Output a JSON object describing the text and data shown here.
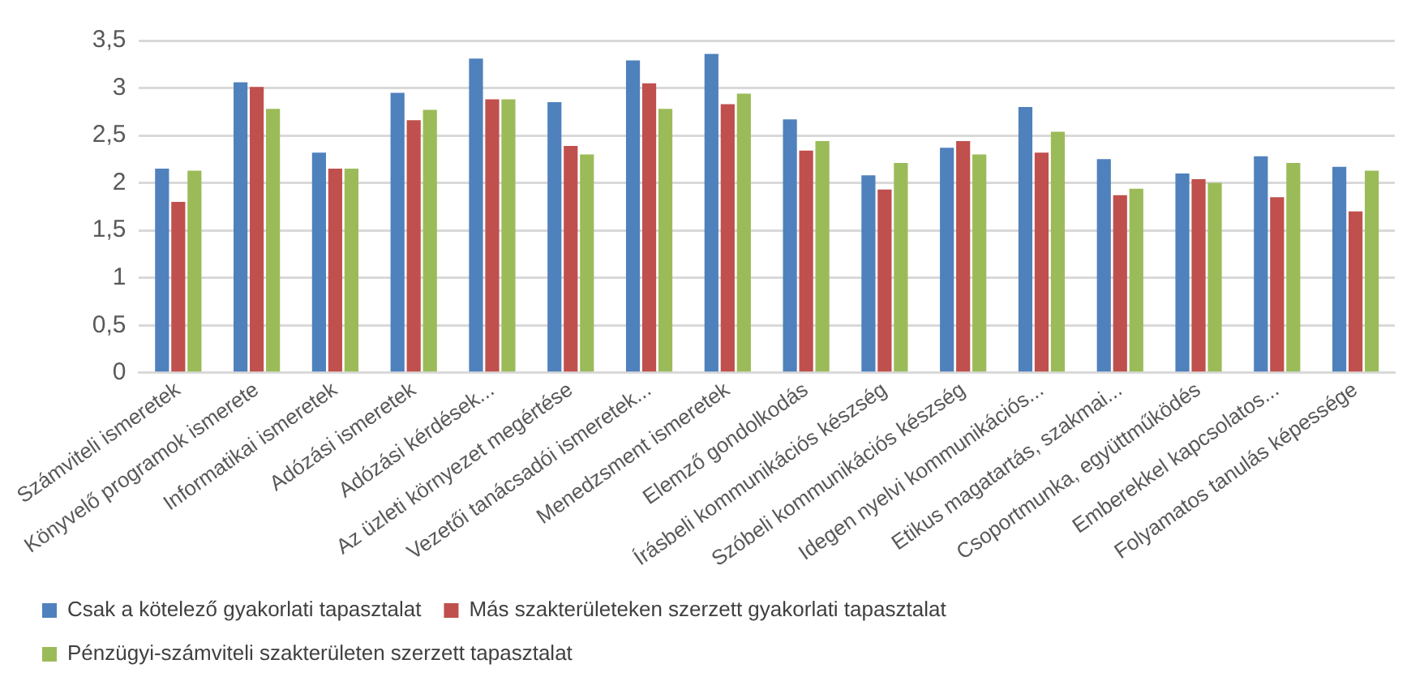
{
  "chart_data": {
    "type": "bar",
    "categories": [
      "Számviteli ismeretek",
      "Könyvelő programok ismerete",
      "Informatikai ismeretek",
      "Adózási ismeretek",
      "Adózási kérdések...",
      "Az üzleti környezet megértése",
      "Vezetői tanácsadói ismeretek...",
      "Menedzsment ismeretek",
      "Elemző gondolkodás",
      "Írásbeli kommunikációs készség",
      "Szóbeli kommunikációs készség",
      "Idegen nyelvi kommunikációs...",
      "Etikus magatartás, szakmai...",
      "Csoportmunka, együttműködés",
      "Emberekkel kapcsolatos...",
      "Folyamatos tanulás képessége"
    ],
    "series": [
      {
        "name": "Csak a kötelező gyakorlati tapasztalat",
        "color": "#4f81bd",
        "values": [
          2.15,
          3.06,
          2.32,
          2.95,
          3.31,
          2.85,
          3.29,
          3.36,
          2.67,
          2.08,
          2.37,
          2.8,
          2.25,
          2.1,
          2.28,
          2.17
        ]
      },
      {
        "name": "Más szakterületeken szerzett gyakorlati tapasztalat",
        "color": "#c0504d",
        "values": [
          1.8,
          3.01,
          2.15,
          2.66,
          2.88,
          2.39,
          3.05,
          2.83,
          2.34,
          1.93,
          2.44,
          2.32,
          1.87,
          2.04,
          1.85,
          1.7
        ]
      },
      {
        "name": "Pénzügyi-számviteli szakterületen szerzett tapasztalat",
        "color": "#9bbb59",
        "values": [
          2.13,
          2.78,
          2.15,
          2.77,
          2.88,
          2.3,
          2.78,
          2.94,
          2.44,
          2.21,
          2.3,
          2.54,
          1.94,
          2,
          2.21,
          2.13
        ]
      }
    ],
    "ylim": [
      0,
      3.5
    ],
    "yticks": [
      0,
      {
        "value": 0.5,
        "label": "0,5"
      },
      1,
      {
        "value": 1.5,
        "label": "1,5"
      },
      2,
      {
        "value": 2.5,
        "label": "2,5"
      },
      3,
      {
        "value": 3.5,
        "label": "3,5"
      }
    ],
    "grid": "y",
    "legend": "bottom"
  }
}
